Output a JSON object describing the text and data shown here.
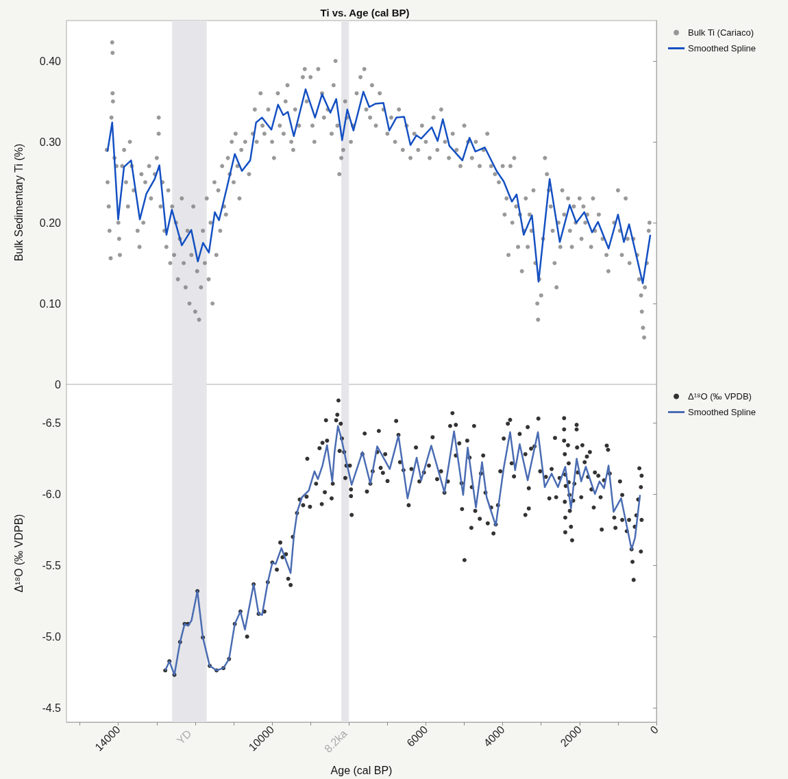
{
  "chart_data": [
    {
      "type": "scatter",
      "title": "Ti vs. Age (cal BP)",
      "ylabel": "Bulk Sedimentary Ti (%)",
      "legend": "right",
      "tick_labels": "y",
      "xlim": [
        15350,
        0
      ],
      "ylim": [
        0,
        0.45
      ],
      "yticks": [
        {
          "value": 0,
          "label": "0"
        },
        {
          "value": 0.1,
          "label": "0.10"
        },
        {
          "value": 0.2,
          "label": "0.20"
        },
        {
          "value": 0.3,
          "label": "0.30"
        },
        {
          "value": 0.4,
          "label": "0.40"
        }
      ],
      "bands": [
        {
          "axis": "x",
          "from": 12600,
          "to": 11700,
          "color": "#e6e6ea"
        },
        {
          "axis": "x",
          "from": 8200,
          "to": 8000,
          "color": "#e6e6ea"
        }
      ],
      "series": [
        {
          "name": "Bulk Ti (Cariaco)",
          "color": "#7f7f7f",
          "marker": "circle",
          "x": [
            14300,
            14280,
            14250,
            14230,
            14200,
            14180,
            14160,
            14150,
            14150,
            14140,
            14100,
            14050,
            14000,
            13980,
            13960,
            13900,
            13850,
            13800,
            13750,
            13700,
            13650,
            13600,
            13500,
            13450,
            13400,
            13350,
            13300,
            13200,
            13150,
            13050,
            13000,
            12950,
            12950,
            12900,
            12850,
            12800,
            12750,
            12700,
            12650,
            12600,
            12550,
            12500,
            12450,
            12400,
            12350,
            12300,
            12250,
            12200,
            12150,
            12100,
            12050,
            12000,
            11950,
            11900,
            11850,
            11800,
            11750,
            11700,
            11650,
            11600,
            11550,
            11500,
            11450,
            11400,
            11350,
            11300,
            11250,
            11200,
            11150,
            11100,
            11050,
            11000,
            10950,
            10900,
            10850,
            10800,
            10700,
            10600,
            10500,
            10450,
            10400,
            10300,
            10250,
            10200,
            10100,
            10000,
            9950,
            9850,
            9800,
            9700,
            9650,
            9600,
            9500,
            9450,
            9400,
            9300,
            9200,
            9150,
            9100,
            9000,
            8950,
            8900,
            8800,
            8700,
            8650,
            8550,
            8450,
            8400,
            8350,
            8300,
            8250,
            8200,
            8150,
            8100,
            8050,
            7950,
            7900,
            7800,
            7700,
            7600,
            7550,
            7450,
            7400,
            7300,
            7200,
            7100,
            7000,
            6900,
            6800,
            6700,
            6600,
            6500,
            6400,
            6300,
            6200,
            6100,
            6000,
            5900,
            5800,
            5700,
            5600,
            5500,
            5400,
            5300,
            5200,
            5100,
            5000,
            4900,
            4800,
            4700,
            4600,
            4500,
            4400,
            4300,
            4200,
            4100,
            4000,
            3950,
            3900,
            3850,
            3800,
            3750,
            3700,
            3650,
            3600,
            3550,
            3500,
            3450,
            3400,
            3350,
            3300,
            3250,
            3200,
            3150,
            3100,
            3080,
            3050,
            3000,
            2950,
            2900,
            2850,
            2800,
            2750,
            2700,
            2650,
            2600,
            2550,
            2500,
            2450,
            2400,
            2300,
            2250,
            2200,
            2150,
            2100,
            2000,
            1950,
            1900,
            1850,
            1800,
            1700,
            1650,
            1600,
            1500,
            1400,
            1300,
            1250,
            1100,
            1000,
            950,
            900,
            800,
            750,
            700,
            600,
            500,
            450,
            400,
            380,
            350,
            320,
            300,
            250,
            200,
            180
          ],
          "values": [
            0.29,
            0.25,
            0.22,
            0.19,
            0.156,
            0.33,
            0.423,
            0.41,
            0.36,
            0.35,
            0.28,
            0.27,
            0.2,
            0.18,
            0.16,
            0.27,
            0.29,
            0.25,
            0.22,
            0.3,
            0.27,
            0.24,
            0.19,
            0.17,
            0.26,
            0.2,
            0.25,
            0.27,
            0.23,
            0.26,
            0.28,
            0.33,
            0.31,
            0.22,
            0.25,
            0.19,
            0.17,
            0.24,
            0.15,
            0.22,
            0.16,
            0.2,
            0.13,
            0.18,
            0.23,
            0.15,
            0.12,
            0.19,
            0.1,
            0.16,
            0.22,
            0.09,
            0.14,
            0.08,
            0.12,
            0.19,
            0.15,
            0.23,
            0.13,
            0.2,
            0.1,
            0.25,
            0.16,
            0.24,
            0.19,
            0.27,
            0.22,
            0.21,
            0.28,
            0.26,
            0.3,
            0.25,
            0.31,
            0.27,
            0.23,
            0.29,
            0.3,
            0.26,
            0.31,
            0.34,
            0.3,
            0.36,
            0.32,
            0.31,
            0.34,
            0.3,
            0.28,
            0.36,
            0.32,
            0.31,
            0.35,
            0.37,
            0.3,
            0.29,
            0.34,
            0.32,
            0.38,
            0.39,
            0.35,
            0.38,
            0.32,
            0.3,
            0.39,
            0.36,
            0.33,
            0.34,
            0.31,
            0.37,
            0.4,
            0.32,
            0.26,
            0.28,
            0.29,
            0.35,
            0.33,
            0.3,
            0.32,
            0.36,
            0.38,
            0.39,
            0.34,
            0.33,
            0.37,
            0.32,
            0.36,
            0.34,
            0.31,
            0.33,
            0.3,
            0.34,
            0.29,
            0.32,
            0.28,
            0.31,
            0.29,
            0.32,
            0.3,
            0.28,
            0.33,
            0.29,
            0.34,
            0.3,
            0.28,
            0.31,
            0.29,
            0.27,
            0.32,
            0.3,
            0.28,
            0.3,
            0.27,
            0.29,
            0.31,
            0.27,
            0.26,
            0.25,
            0.27,
            0.21,
            0.23,
            0.16,
            0.27,
            0.2,
            0.28,
            0.22,
            0.17,
            0.21,
            0.14,
            0.19,
            0.23,
            0.17,
            0.21,
            0.19,
            0.24,
            0.15,
            0.1,
            0.08,
            0.13,
            0.11,
            0.18,
            0.28,
            0.26,
            0.24,
            0.22,
            0.19,
            0.15,
            0.12,
            0.2,
            0.17,
            0.24,
            0.21,
            0.23,
            0.19,
            0.17,
            0.22,
            0.2,
            0.23,
            0.18,
            0.22,
            0.2,
            0.21,
            0.17,
            0.23,
            0.19,
            0.21,
            0.18,
            0.16,
            0.14,
            0.2,
            0.24,
            0.19,
            0.16,
            0.23,
            0.18,
            0.15,
            0.18,
            0.16,
            0.13,
            0.11,
            0.09,
            0.07,
            0.058,
            0.12,
            0.15,
            0.19,
            0.2
          ]
        },
        {
          "type": "line",
          "name": "Smoothed Spline",
          "color": "#1450c2",
          "x": [
            14283,
            14160,
            14005,
            13852,
            13668,
            13441,
            13270,
            13055,
            12932,
            12749,
            12607,
            12349,
            12103,
            11932,
            11797,
            11644,
            11491,
            11381,
            11183,
            10970,
            10785,
            10570,
            10416,
            10263,
            10018,
            9845,
            9711,
            9589,
            9434,
            9128,
            8883,
            8699,
            8484,
            8331,
            8178,
            8043,
            7883,
            7625,
            7472,
            7319,
            7104,
            6951,
            6766,
            6565,
            6399,
            6245,
            6122,
            5846,
            5693,
            5558,
            5387,
            5049,
            4864,
            4711,
            4465,
            4159,
            3974,
            3761,
            3638,
            3453,
            3239,
            3067,
            2779,
            2515,
            2258,
            2085,
            1877,
            1674,
            1521,
            1245,
            1000,
            847,
            712,
            356,
            160
          ],
          "values": [
            0.288,
            0.324,
            0.204,
            0.269,
            0.277,
            0.204,
            0.236,
            0.254,
            0.271,
            0.185,
            0.216,
            0.172,
            0.191,
            0.152,
            0.175,
            0.163,
            0.213,
            0.203,
            0.242,
            0.285,
            0.264,
            0.277,
            0.324,
            0.33,
            0.315,
            0.346,
            0.333,
            0.337,
            0.307,
            0.365,
            0.33,
            0.359,
            0.336,
            0.353,
            0.302,
            0.34,
            0.314,
            0.362,
            0.343,
            0.347,
            0.348,
            0.314,
            0.33,
            0.331,
            0.296,
            0.308,
            0.304,
            0.318,
            0.301,
            0.328,
            0.295,
            0.277,
            0.305,
            0.288,
            0.293,
            0.264,
            0.251,
            0.226,
            0.235,
            0.185,
            0.209,
            0.127,
            0.254,
            0.176,
            0.222,
            0.2,
            0.213,
            0.188,
            0.201,
            0.168,
            0.21,
            0.176,
            0.198,
            0.125,
            0.185
          ]
        }
      ]
    },
    {
      "type": "scatter",
      "xlabel": "Age (cal BP)",
      "ylabel": "Δ¹⁸O (‰ VDPB)",
      "legend": "right",
      "xlim": [
        15350,
        0
      ],
      "ylim": [
        -4.4,
        -6.77
      ],
      "xticks": [
        {
          "value": 15000,
          "label": null
        },
        14000,
        {
          "value": 13000,
          "label": null
        },
        {
          "value": 12000,
          "label": null
        },
        {
          "value": 11000,
          "label": null
        },
        10000,
        {
          "value": 9000,
          "label": null
        },
        {
          "value": 8000,
          "label": null
        },
        {
          "value": 7000,
          "label": null
        },
        6000,
        {
          "value": 5000,
          "label": null
        },
        4000,
        {
          "value": 3000,
          "label": null
        },
        2000,
        {
          "value": 1000,
          "label": null
        },
        0
      ],
      "yticks": [
        {
          "value": -6.5,
          "label": "-6.5"
        },
        {
          "value": -6,
          "label": "-6.0"
        },
        {
          "value": -5.5,
          "label": "-5.5"
        },
        {
          "value": -5,
          "label": "-5.0"
        },
        {
          "value": -4.5,
          "label": "-4.5"
        }
      ],
      "bands": [
        {
          "axis": "x",
          "from": 12600,
          "to": 11700,
          "color": "#e6e6ea",
          "label": "YD"
        },
        {
          "axis": "x",
          "from": 8200,
          "to": 8000,
          "color": "#e6e6ea",
          "label": "8.2ka"
        }
      ],
      "series": [
        {
          "name": "Δ¹⁸O (‰ VPDB)",
          "color": "#000000",
          "marker": "circle",
          "x": [
            12779,
            12672,
            12542,
            12394,
            12275,
            12186,
            11943,
            11801,
            11623,
            11445,
            11267,
            11120,
            10971,
            10823,
            10650,
            10480,
            10350,
            10200,
            10112,
            9994,
            9876,
            9787,
            9728,
            9639,
            9580,
            9518,
            9460,
            9352,
            9281,
            9192,
            9103,
            9014,
            9085,
            8855,
            8707,
            8766,
            8689,
            8598,
            8570,
            8628,
            8451,
            8421,
            8332,
            8273,
            8303,
            8214,
            8184,
            8243,
            8125,
            8066,
            8095,
            7947,
            7947,
            7930,
            7976,
            7591,
            7650,
            7532,
            7443,
            7383,
            7223,
            7265,
            7175,
            7116,
            7057,
            6997,
            6772,
            6712,
            6671,
            6582,
            6446,
            6375,
            6257,
            6168,
            6049,
            5919,
            5824,
            5706,
            5604,
            5516,
            5427,
            5367,
            5307,
            5219,
            5219,
            5130,
            5070,
            5058,
            4994,
            4923,
            4863,
            4804,
            4816,
            4744,
            4714,
            4596,
            4566,
            4507,
            4448,
            4389,
            4300,
            4240,
            4181,
            4122,
            4062,
            3973,
            3866,
            3807,
            3766,
            3706,
            3558,
            3410,
            3410,
            3350,
            3321,
            3321,
            3261,
            3172,
            3072,
            3024,
            2876,
            2787,
            2727,
            2639,
            2609,
            2520,
            2402,
            2402,
            2402,
            2384,
            2372,
            2360,
            2384,
            2372,
            2372,
            2301,
            2283,
            2283,
            2265,
            2254,
            2224,
            2194,
            2165,
            2135,
            2076,
            2076,
            2064,
            2046,
            1957,
            1927,
            1868,
            1809,
            1779,
            1731,
            1690,
            1631,
            1601,
            1512,
            1453,
            1423,
            1364,
            1293,
            1258,
            1216,
            1098,
            1067,
            948,
            890,
            890,
            771,
            712,
            647,
            623,
            593,
            564,
            522,
            475,
            445,
            404,
            386,
            386,
            404
          ],
          "values": [
            -4.763,
            -4.827,
            -4.732,
            -4.962,
            -5.089,
            -5.089,
            -5.319,
            -4.994,
            -4.795,
            -4.763,
            -4.779,
            -4.843,
            -5.089,
            -5.176,
            -5.0,
            -5.367,
            -5.16,
            -5.176,
            -5.382,
            -5.52,
            -5.47,
            -5.66,
            -5.557,
            -5.578,
            -5.406,
            -5.362,
            -5.7,
            -5.867,
            -5.962,
            -5.922,
            -5.982,
            -5.911,
            -6.248,
            -6.073,
            -5.93,
            -6.322,
            -6.36,
            -6.518,
            -6.375,
            -6.013,
            -5.97,
            -6.073,
            -6.518,
            -6.657,
            -6.557,
            -6.494,
            -6.39,
            -6.303,
            -6.295,
            -6.2,
            -6.113,
            -6.033,
            -5.986,
            -5.854,
            -6.2,
            -6.425,
            -6.28,
            -6.018,
            -6.073,
            -6.16,
            -6.443,
            -6.295,
            -6.184,
            -6.149,
            -6.28,
            -6.092,
            -6.513,
            -6.415,
            -6.224,
            -6.168,
            -5.922,
            -6.176,
            -6.327,
            -6.089,
            -6.152,
            -6.2,
            -6.399,
            -6.105,
            -6.16,
            -6.01,
            -6.089,
            -6.478,
            -6.568,
            -6.486,
            -6.271,
            -6.356,
            -6.076,
            -5.895,
            -5.537,
            -6.375,
            -6.256,
            -6.049,
            -5.763,
            -6.478,
            -5.882,
            -5.827,
            -6.144,
            -6.271,
            -6.01,
            -5.795,
            -5.906,
            -5.724,
            -5.787,
            -5.922,
            -6.16,
            -6.39,
            -6.494,
            -6.521,
            -6.216,
            -6.124,
            -6.422,
            -6.28,
            -5.854,
            -6.47,
            -6.041,
            -5.899,
            -6.319,
            -6.335,
            -6.53,
            -6.16,
            -6.121,
            -5.97,
            -6.176,
            -6.394,
            -5.978,
            -6.113,
            -6.533,
            -6.454,
            -6.375,
            -6.28,
            -6.137,
            -6.057,
            -5.946,
            -5.835,
            -5.732,
            -6.343,
            -6.216,
            -6.083,
            -5.994,
            -5.882,
            -5.771,
            -5.676,
            -5.954,
            -6.073,
            -6.486,
            -6.454,
            -6.327,
            -6.152,
            -5.978,
            -6.343,
            -6.224,
            -6.263,
            -6.121,
            -6.295,
            -6.033,
            -5.906,
            -6.152,
            -6.129,
            -5.978,
            -5.751,
            -6.097,
            -6.34,
            -6.311,
            -6.144,
            -5.835,
            -5.763,
            -6.089,
            -5.994,
            -5.819,
            -5.74,
            -5.819,
            -5.613,
            -5.525,
            -5.398,
            -5.771,
            -5.851,
            -5.962,
            -6.181,
            -6.049,
            -6.129,
            -5.819,
            -5.597
          ]
        },
        {
          "type": "line",
          "name": "Smoothed Spline",
          "color": "#4a6cb3",
          "x": [
            12779,
            12672,
            12542,
            12394,
            12275,
            12186,
            12097,
            11943,
            11801,
            11623,
            11445,
            11267,
            11120,
            10971,
            10823,
            10706,
            10480,
            10350,
            10261,
            10112,
            9994,
            9905,
            9757,
            9518,
            9430,
            9341,
            9222,
            9045,
            8897,
            8808,
            8689,
            8570,
            8434,
            8375,
            8286,
            8197,
            8066,
            7930,
            7650,
            7443,
            7265,
            6939,
            6712,
            6476,
            6239,
            6120,
            5859,
            5516,
            5266,
            5029,
            4910,
            4697,
            4537,
            4418,
            4181,
            3973,
            3807,
            3677,
            3558,
            3350,
            3083,
            2905,
            2727,
            2562,
            2372,
            2224,
            2076,
            1957,
            1838,
            1601,
            1482,
            1364,
            1245,
            1115,
            919,
            647,
            558,
            427
          ],
          "values": [
            -4.763,
            -4.827,
            -4.732,
            -4.962,
            -5.089,
            -5.076,
            -5.113,
            -5.319,
            -4.994,
            -4.795,
            -4.763,
            -4.779,
            -4.843,
            -5.089,
            -5.176,
            -5.049,
            -5.367,
            -5.16,
            -5.152,
            -5.382,
            -5.518,
            -5.51,
            -5.621,
            -5.446,
            -5.716,
            -5.882,
            -5.978,
            -6.025,
            -6.16,
            -6.105,
            -6.2,
            -6.343,
            -6.089,
            -6.295,
            -6.478,
            -6.39,
            -6.224,
            -6.065,
            -6.295,
            -6.073,
            -6.335,
            -6.176,
            -6.41,
            -5.97,
            -6.256,
            -6.097,
            -6.34,
            -6.013,
            -6.441,
            -5.994,
            -6.327,
            -5.906,
            -6.224,
            -5.978,
            -5.779,
            -6.184,
            -6.435,
            -6.168,
            -6.351,
            -6.097,
            -6.435,
            -6.049,
            -6.144,
            -6.049,
            -6.192,
            -5.899,
            -6.248,
            -6.089,
            -6.192,
            -6.001,
            -6.089,
            -6.041,
            -6.2,
            -5.875,
            -5.97,
            -5.613,
            -5.692,
            -5.994
          ]
        }
      ]
    }
  ]
}
